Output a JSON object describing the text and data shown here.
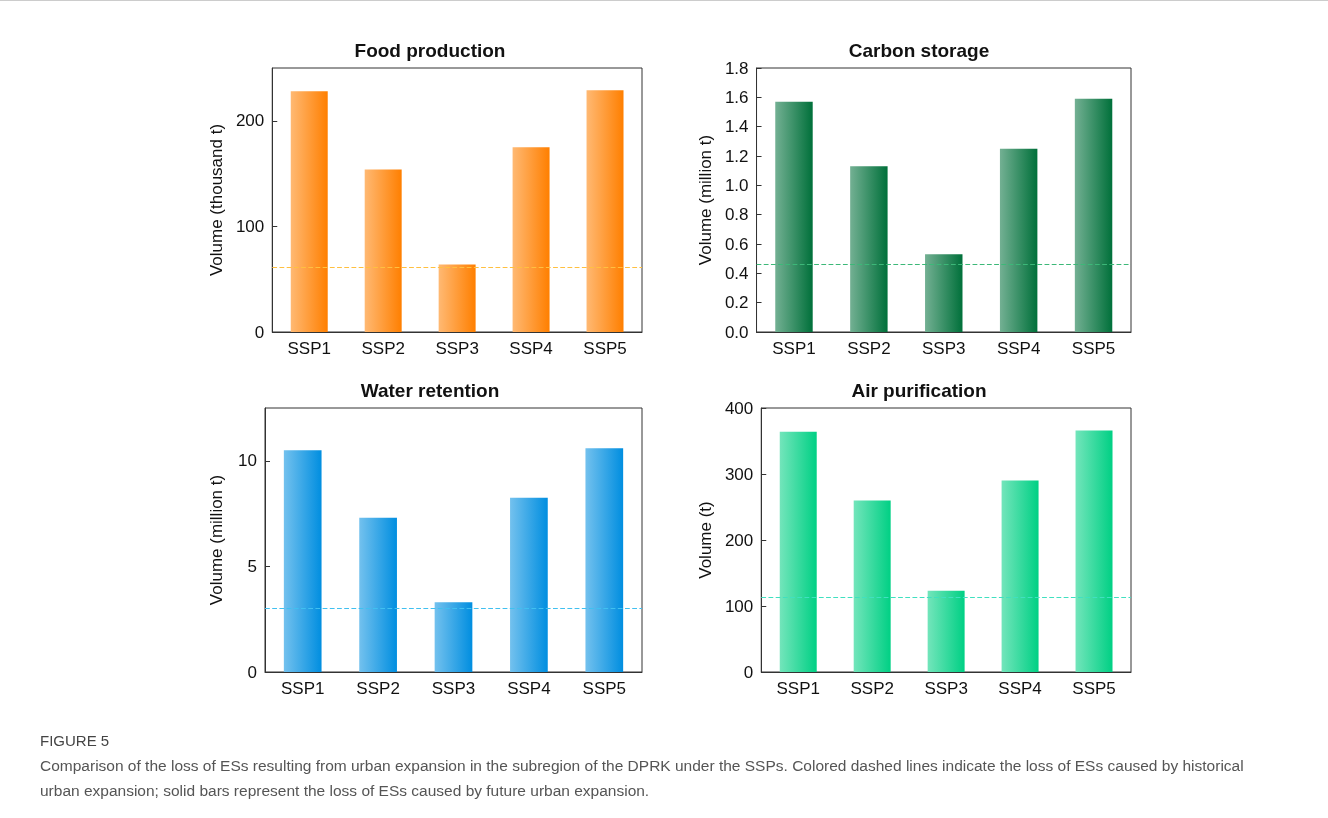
{
  "chart_data": [
    {
      "type": "bar",
      "title": "Food production",
      "ylabel": "Volume (thousand t)",
      "categories": [
        "SSP1",
        "SSP2",
        "SSP3",
        "SSP4",
        "SSP5"
      ],
      "series": [
        {
          "color": "#ff7f00",
          "values": [
            228,
            154,
            64,
            175,
            229
          ]
        }
      ],
      "ylim": [
        0,
        250
      ],
      "yticks": [
        0,
        100,
        200
      ],
      "grid": false,
      "ref_lines": [
        {
          "axis": "y",
          "value": 61,
          "color": "#ffc040",
          "line_style": "dashed"
        }
      ],
      "annotations": [
        "FIGURE 5",
        "Comparison of the loss of ESs resulting from urban expansion in the subregion of the DPRK under the SSPs. Colored dashed lines indicate the loss of ESs caused by historical urban expansion; solid bars represent the loss of ESs caused by future urban expansion."
      ]
    },
    {
      "type": "bar",
      "title": "Carbon storage",
      "ylabel": "Volume (million t)",
      "categories": [
        "SSP1",
        "SSP2",
        "SSP3",
        "SSP4",
        "SSP5"
      ],
      "series": [
        {
          "color": "#00703a",
          "values": [
            1.57,
            1.13,
            0.53,
            1.25,
            1.59
          ]
        }
      ],
      "ylim": [
        0,
        1.8
      ],
      "yticks": [
        "0.0",
        0.2,
        0.4,
        0.6,
        0.8,
        "1.0",
        1.2,
        1.4,
        1.6,
        1.8
      ],
      "grid": false,
      "ref_lines": [
        {
          "axis": "y",
          "value": 0.46,
          "color": "#3cb878",
          "line_style": "dashed"
        }
      ]
    },
    {
      "type": "bar",
      "title": "Water retention",
      "ylabel": "Volume (million t)",
      "categories": [
        "SSP1",
        "SSP2",
        "SSP3",
        "SSP4",
        "SSP5"
      ],
      "series": [
        {
          "color": "#008ee0",
          "values": [
            10.5,
            7.3,
            3.3,
            8.25,
            10.6
          ]
        }
      ],
      "ylim": [
        0,
        12.5
      ],
      "yticks": [
        0,
        5,
        10
      ],
      "grid": false,
      "ref_lines": [
        {
          "axis": "y",
          "value": 3.0,
          "color": "#40c0f0",
          "line_style": "dashed"
        }
      ]
    },
    {
      "type": "bar",
      "title": "Air purification",
      "ylabel": "Volume (t)",
      "categories": [
        "SSP1",
        "SSP2",
        "SSP3",
        "SSP4",
        "SSP5"
      ],
      "series": [
        {
          "color": "#00d084",
          "values": [
            364,
            260,
            123,
            290,
            366
          ]
        }
      ],
      "ylim": [
        0,
        400
      ],
      "yticks": [
        0,
        100,
        200,
        300,
        400
      ],
      "grid": false,
      "ref_lines": [
        {
          "axis": "y",
          "value": 113,
          "color": "#40e0c0",
          "line_style": "dashed"
        }
      ]
    }
  ]
}
